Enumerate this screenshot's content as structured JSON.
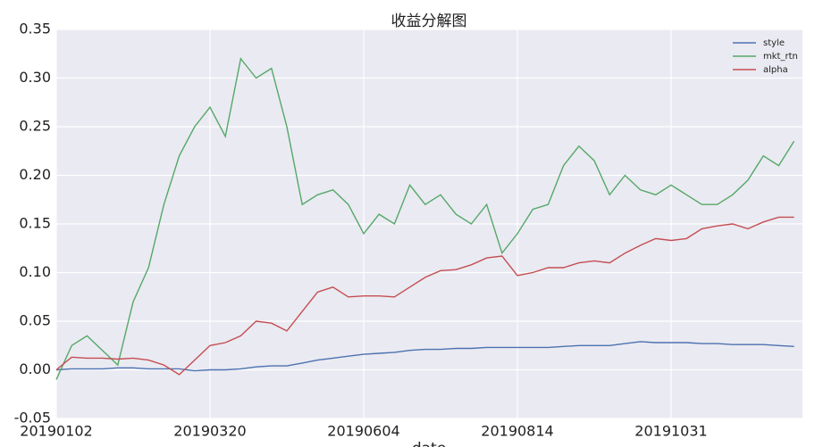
{
  "chart_data": {
    "type": "line",
    "title": "收益分解图",
    "x_label": "date",
    "categories": [
      "20190102",
      null,
      null,
      null,
      null,
      null,
      null,
      null,
      null,
      null,
      "20190320",
      null,
      null,
      null,
      null,
      null,
      null,
      null,
      null,
      null,
      "20190604",
      null,
      null,
      null,
      null,
      null,
      null,
      null,
      null,
      null,
      "20190814",
      null,
      null,
      null,
      null,
      null,
      null,
      null,
      null,
      null,
      "20191031",
      null,
      null,
      null,
      null,
      null,
      null,
      null,
      null
    ],
    "series": [
      {
        "name": "style",
        "color": "#4c72b0",
        "values": [
          0,
          0.001,
          0.001,
          0.001,
          0.002,
          0.002,
          0.001,
          0.001,
          0.001,
          -0.001,
          0,
          0,
          0.001,
          0.003,
          0.004,
          0.004,
          0.007,
          0.01,
          0.012,
          0.014,
          0.016,
          0.017,
          0.018,
          0.02,
          0.021,
          0.021,
          0.022,
          0.022,
          0.023,
          0.023,
          0.023,
          0.023,
          0.023,
          0.024,
          0.025,
          0.025,
          0.025,
          0.027,
          0.029,
          0.028,
          0.028,
          0.028,
          0.027,
          0.027,
          0.026,
          0.026,
          0.026,
          0.025,
          0.024
        ]
      },
      {
        "name": "mkt_rtn",
        "color": "#55a868",
        "values": [
          -0.01,
          0.025,
          0.035,
          0.02,
          0.005,
          0.07,
          0.105,
          0.17,
          0.22,
          0.25,
          0.27,
          0.24,
          0.32,
          0.3,
          0.31,
          0.25,
          0.17,
          0.18,
          0.185,
          0.17,
          0.14,
          0.16,
          0.15,
          0.19,
          0.17,
          0.18,
          0.16,
          0.15,
          0.17,
          0.12,
          0.14,
          0.165,
          0.17,
          0.21,
          0.23,
          0.215,
          0.18,
          0.2,
          0.185,
          0.18,
          0.19,
          0.18,
          0.17,
          0.17,
          0.18,
          0.195,
          0.22,
          0.21,
          0.235
        ]
      },
      {
        "name": "alpha",
        "color": "#c44e52",
        "values": [
          0,
          0.013,
          0.012,
          0.012,
          0.011,
          0.012,
          0.01,
          0.005,
          -0.005,
          0.01,
          0.025,
          0.028,
          0.035,
          0.05,
          0.048,
          0.04,
          0.06,
          0.08,
          0.085,
          0.075,
          0.076,
          0.076,
          0.075,
          0.085,
          0.095,
          0.102,
          0.103,
          0.108,
          0.115,
          0.117,
          0.097,
          0.1,
          0.105,
          0.105,
          0.11,
          0.112,
          0.11,
          0.12,
          0.128,
          0.135,
          0.133,
          0.135,
          0.145,
          0.148,
          0.15,
          0.145,
          0.152,
          0.157,
          0.157
        ]
      }
    ],
    "ylim": [
      -0.05,
      0.35
    ],
    "yticks": [
      -0.05,
      {
        "value": 0,
        "label": "0.00"
      },
      0.05,
      {
        "value": 0.1,
        "label": "0.10"
      },
      0.15,
      {
        "value": 0.2,
        "label": "0.20"
      },
      0.25,
      {
        "value": 0.3,
        "label": "0.30"
      },
      0.35
    ],
    "grid": true,
    "legend": "upper right"
  }
}
